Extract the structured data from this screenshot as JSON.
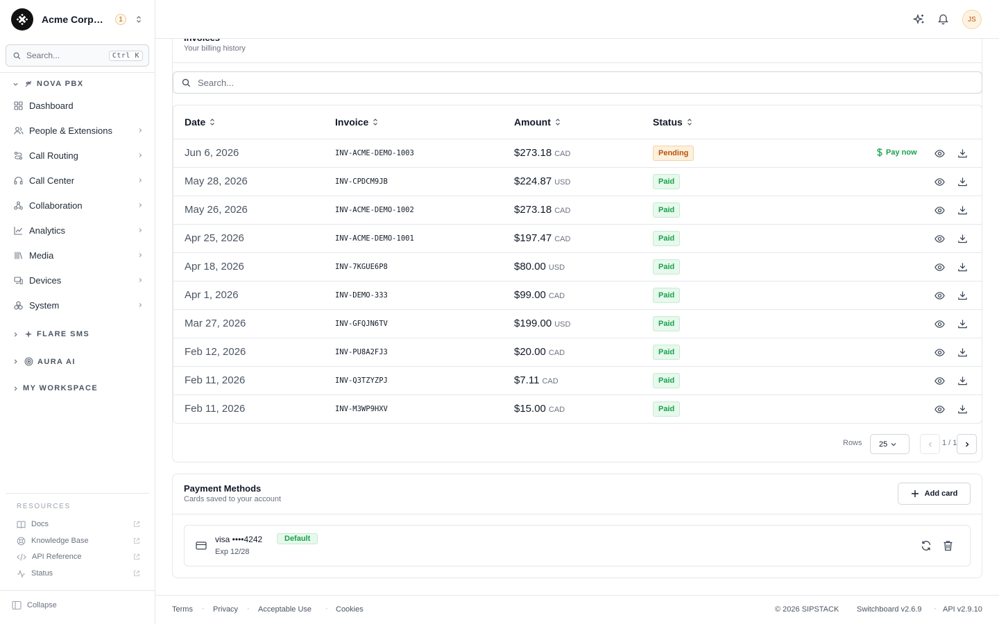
{
  "org": {
    "name": "Acme Corporation",
    "badge": "1"
  },
  "search": {
    "placeholder": "Search...",
    "shortcut": "Ctrl K"
  },
  "nav": {
    "groups": [
      {
        "label": "NOVA PBX",
        "icon": "phone-off-icon",
        "expanded": true
      },
      {
        "label": "FLARE SMS",
        "icon": "sparkle-icon",
        "expanded": false
      },
      {
        "label": "AURA AI",
        "icon": "target-icon",
        "expanded": false
      },
      {
        "label": "MY WORKSPACE",
        "icon": "",
        "expanded": false
      }
    ],
    "items": [
      {
        "label": "Dashboard",
        "icon": "grid-icon",
        "has_children": false
      },
      {
        "label": "People & Extensions",
        "icon": "users-icon",
        "has_children": true
      },
      {
        "label": "Call Routing",
        "icon": "route-icon",
        "has_children": true
      },
      {
        "label": "Call Center",
        "icon": "headset-icon",
        "has_children": true
      },
      {
        "label": "Collaboration",
        "icon": "network-icon",
        "has_children": true
      },
      {
        "label": "Analytics",
        "icon": "line-chart-icon",
        "has_children": true
      },
      {
        "label": "Media",
        "icon": "library-icon",
        "has_children": true
      },
      {
        "label": "Devices",
        "icon": "devices-icon",
        "has_children": true
      },
      {
        "label": "System",
        "icon": "cubes-icon",
        "has_children": true
      }
    ]
  },
  "resources": {
    "title": "RESOURCES",
    "items": [
      {
        "label": "Docs",
        "icon": "book-icon"
      },
      {
        "label": "Knowledge Base",
        "icon": "lifebuoy-icon"
      },
      {
        "label": "API Reference",
        "icon": "code-icon"
      },
      {
        "label": "Status",
        "icon": "activity-icon"
      }
    ]
  },
  "collapse_label": "Collapse",
  "topbar": {
    "avatar": "JS"
  },
  "invoices": {
    "title": "Invoices",
    "subtitle": "Your billing history",
    "search_placeholder": "Search...",
    "columns": {
      "date": "Date",
      "invoice": "Invoice",
      "amount": "Amount",
      "status": "Status"
    },
    "pay_now_label": "Pay now",
    "rows": [
      {
        "date": "Jun 6, 2026",
        "invoice": "INV-ACME-DEMO-1003",
        "amount": "$273.18",
        "currency": "CAD",
        "status": "Pending",
        "pay_now": true
      },
      {
        "date": "May 28, 2026",
        "invoice": "INV-CPDCM9JB",
        "amount": "$224.87",
        "currency": "USD",
        "status": "Paid",
        "pay_now": false
      },
      {
        "date": "May 26, 2026",
        "invoice": "INV-ACME-DEMO-1002",
        "amount": "$273.18",
        "currency": "CAD",
        "status": "Paid",
        "pay_now": false
      },
      {
        "date": "Apr 25, 2026",
        "invoice": "INV-ACME-DEMO-1001",
        "amount": "$197.47",
        "currency": "CAD",
        "status": "Paid",
        "pay_now": false
      },
      {
        "date": "Apr 18, 2026",
        "invoice": "INV-7KGUE6P8",
        "amount": "$80.00",
        "currency": "USD",
        "status": "Paid",
        "pay_now": false
      },
      {
        "date": "Apr 1, 2026",
        "invoice": "INV-DEMO-333",
        "amount": "$99.00",
        "currency": "CAD",
        "status": "Paid",
        "pay_now": false
      },
      {
        "date": "Mar 27, 2026",
        "invoice": "INV-GFQJN6TV",
        "amount": "$199.00",
        "currency": "USD",
        "status": "Paid",
        "pay_now": false
      },
      {
        "date": "Feb 12, 2026",
        "invoice": "INV-PU8A2FJ3",
        "amount": "$20.00",
        "currency": "CAD",
        "status": "Paid",
        "pay_now": false
      },
      {
        "date": "Feb 11, 2026",
        "invoice": "INV-Q3TZYZPJ",
        "amount": "$7.11",
        "currency": "CAD",
        "status": "Paid",
        "pay_now": false
      },
      {
        "date": "Feb 11, 2026",
        "invoice": "INV-M3WP9HXV",
        "amount": "$15.00",
        "currency": "CAD",
        "status": "Paid",
        "pay_now": false
      }
    ],
    "pagination": {
      "rows_label": "Rows",
      "rows_per_page": "25",
      "page": "1 / 1"
    }
  },
  "payment_methods": {
    "title": "Payment Methods",
    "subtitle": "Cards saved to your account",
    "add_label": "Add card",
    "cards": [
      {
        "brand_last4": "visa ••••4242",
        "badge": "Default",
        "expiry": "Exp 12/28"
      }
    ]
  },
  "footer": {
    "links": [
      "Terms",
      "Privacy",
      "Acceptable Use",
      "Cookies"
    ],
    "copyright": "© 2026 SIPSTACK",
    "version": "Switchboard v2.6.9",
    "api_version": "API v2.9.10"
  },
  "colors": {
    "paid": "#16a34a",
    "pending": "#b45309",
    "border": "#e5e7eb"
  }
}
